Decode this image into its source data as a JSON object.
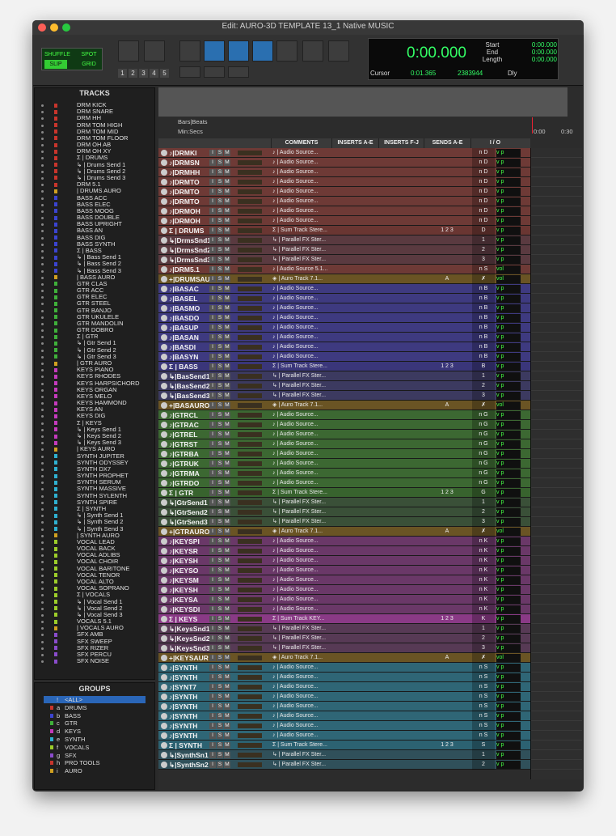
{
  "window": {
    "title": "Edit: AURO-3D TEMPLATE 13_1 Native MUSIC"
  },
  "toolbar": {
    "modes": [
      "SHUFFLE",
      "SPOT",
      "SLIP",
      "GRID"
    ],
    "zoom_presets": [
      "1",
      "2",
      "3",
      "4",
      "5"
    ],
    "counter": {
      "main": "0:00.000",
      "labels": [
        "Start",
        "End",
        "Length"
      ],
      "values": [
        "0:00.000",
        "0:00.000",
        "0:00.000"
      ]
    },
    "cursor": {
      "label": "Cursor",
      "time": "0:01.365",
      "samples": "2383944",
      "delay": "Dly"
    }
  },
  "tracks_panel": {
    "title": "TRACKS",
    "items": [
      [
        "DRM KICK",
        "#c8352c"
      ],
      [
        "DRM SNARE",
        "#c8352c"
      ],
      [
        "DRM HH",
        "#c8352c"
      ],
      [
        "DRM TOM HIGH",
        "#c8352c"
      ],
      [
        "DRM TOM MID",
        "#c8352c"
      ],
      [
        "DRM TOM FLOOR",
        "#c8352c"
      ],
      [
        "DRM OH AB",
        "#c8352c"
      ],
      [
        "DRM OH XY",
        "#c8352c"
      ],
      [
        "Σ | DRUMS",
        "#c8352c"
      ],
      [
        "↳ | Drums Send 1",
        "#c8352c"
      ],
      [
        "↳ | Drums Send 2",
        "#c8352c"
      ],
      [
        "↳ | Drums Send 3",
        "#c8352c"
      ],
      [
        "DRM 5.1",
        "#c8352c"
      ],
      [
        "| DRUMS AURO",
        "#d0a020"
      ],
      [
        "BASS ACC",
        "#3b44d0"
      ],
      [
        "BASS ELEC",
        "#3b44d0"
      ],
      [
        "BASS MOOG",
        "#3b44d0"
      ],
      [
        "BASS DOUBLE",
        "#3b44d0"
      ],
      [
        "BASS UPRIGHT",
        "#3b44d0"
      ],
      [
        "BASS AN",
        "#3b44d0"
      ],
      [
        "BASS DIG",
        "#3b44d0"
      ],
      [
        "BASS SYNTH",
        "#3b44d0"
      ],
      [
        "Σ | BASS",
        "#3b44d0"
      ],
      [
        "↳ | Bass Send 1",
        "#3b44d0"
      ],
      [
        "↳ | Bass Send 2",
        "#3b44d0"
      ],
      [
        "↳ | Bass Send 3",
        "#3b44d0"
      ],
      [
        "| BASS AURO",
        "#d0a020"
      ],
      [
        "GTR CLAS",
        "#3fb03a"
      ],
      [
        "GTR ACC",
        "#3fb03a"
      ],
      [
        "GTR ELEC",
        "#3fb03a"
      ],
      [
        "GTR STEEL",
        "#3fb03a"
      ],
      [
        "GTR BANJO",
        "#3fb03a"
      ],
      [
        "GTR UKULELE",
        "#3fb03a"
      ],
      [
        "GTR MANDOLIN",
        "#3fb03a"
      ],
      [
        "GTR DOBRO",
        "#3fb03a"
      ],
      [
        "Σ | GTR",
        "#3fb03a"
      ],
      [
        "↳ | Gtr Send 1",
        "#3fb03a"
      ],
      [
        "↳ | Gtr Send 2",
        "#3fb03a"
      ],
      [
        "↳ | Gtr Send 3",
        "#3fb03a"
      ],
      [
        "| GTR AURO",
        "#d0a020"
      ],
      [
        "KEYS PIANO",
        "#c43abc"
      ],
      [
        "KEYS RHODES",
        "#c43abc"
      ],
      [
        "KEYS HARPSICHORD",
        "#c43abc"
      ],
      [
        "KEYS ORGAN",
        "#c43abc"
      ],
      [
        "KEYS MELO",
        "#c43abc"
      ],
      [
        "KEYS HAMMOND",
        "#c43abc"
      ],
      [
        "KEYS AN",
        "#c43abc"
      ],
      [
        "KEYS DIG",
        "#c43abc"
      ],
      [
        "Σ | KEYS",
        "#c43abc"
      ],
      [
        "↳ | Keys Send 1",
        "#c43abc"
      ],
      [
        "↳ | Keys Send 2",
        "#c43abc"
      ],
      [
        "↳ | Keys Send 3",
        "#c43abc"
      ],
      [
        "| KEYS AURO",
        "#d0a020"
      ],
      [
        "SYNTH JUPITER",
        "#2fb0d0"
      ],
      [
        "SYNTH ODYSSEY",
        "#2fb0d0"
      ],
      [
        "SYNTH DX7",
        "#2fb0d0"
      ],
      [
        "SYNTH PROPHET",
        "#2fb0d0"
      ],
      [
        "SYNTH SERUM",
        "#2fb0d0"
      ],
      [
        "SYNTH MASSIVE",
        "#2fb0d0"
      ],
      [
        "SYNTH SYLENTH",
        "#2fb0d0"
      ],
      [
        "SYNTH SPIRE",
        "#2fb0d0"
      ],
      [
        "Σ | SYNTH",
        "#2fb0d0"
      ],
      [
        "↳ | Synth Send 1",
        "#2fb0d0"
      ],
      [
        "↳ | Synth Send 2",
        "#2fb0d0"
      ],
      [
        "↳ | Synth Send 3",
        "#2fb0d0"
      ],
      [
        "| SYNTH AURO",
        "#d0a020"
      ],
      [
        "VOCAL LEAD",
        "#9ccd2a"
      ],
      [
        "VOCAL BACK",
        "#9ccd2a"
      ],
      [
        "VOCAL ADLIBS",
        "#9ccd2a"
      ],
      [
        "VOCAL CHOIR",
        "#9ccd2a"
      ],
      [
        "VOCAL BARITONE",
        "#9ccd2a"
      ],
      [
        "VOCAL TENOR",
        "#9ccd2a"
      ],
      [
        "VOCAL ALTO",
        "#9ccd2a"
      ],
      [
        "VOCAL SOPRANO",
        "#9ccd2a"
      ],
      [
        "Σ | VOCALS",
        "#9ccd2a"
      ],
      [
        "↳ | Vocal Send 1",
        "#9ccd2a"
      ],
      [
        "↳ | Vocal Send 2",
        "#9ccd2a"
      ],
      [
        "↳ | Vocal Send 3",
        "#9ccd2a"
      ],
      [
        "VOCALS 5.1",
        "#9ccd2a"
      ],
      [
        "| VOCALS AURO",
        "#d0a020"
      ],
      [
        "SFX AMB",
        "#8a4ccc"
      ],
      [
        "SFX SWEEP",
        "#8a4ccc"
      ],
      [
        "SFX RIZER",
        "#8a4ccc"
      ],
      [
        "SFX PERCU",
        "#8a4ccc"
      ],
      [
        "SFX NOISE",
        "#8a4ccc"
      ]
    ]
  },
  "groups_panel": {
    "title": "GROUPS",
    "items": [
      [
        "!",
        "<ALL>",
        "#2a66b8"
      ],
      [
        "a",
        "DRUMS",
        "#c8352c"
      ],
      [
        "b",
        "BASS",
        "#3b44d0"
      ],
      [
        "c",
        "GTR",
        "#3fb03a"
      ],
      [
        "d",
        "KEYS",
        "#c43abc"
      ],
      [
        "e",
        "SYNTH",
        "#2fb0d0"
      ],
      [
        "f",
        "VOCALS",
        "#9ccd2a"
      ],
      [
        "g",
        "SFX",
        "#8a4ccc"
      ],
      [
        "h",
        "PRO TOOLS",
        "#c8352c"
      ],
      [
        "i",
        "AURO",
        "#d0a020"
      ]
    ]
  },
  "edit": {
    "rulers": [
      "Bars|Beats",
      "Min:Secs"
    ],
    "timeline": [
      "0:00",
      "0:30"
    ],
    "columns": [
      "COMMENTS",
      "INSERTS A-E",
      "INSERTS F-J",
      "SENDS A-E",
      "I / O"
    ],
    "row_buttons": [
      "I",
      "S",
      "M"
    ],
    "rows": [
      {
        "name": "♪|DRMKI",
        "comment": "♪ | Audio Source...",
        "io": "n D",
        "vol": "v p",
        "color": "#6e3a36"
      },
      {
        "name": "♪|DRMSN",
        "comment": "♪ | Audio Source...",
        "io": "n D",
        "vol": "v p",
        "color": "#6e3a36"
      },
      {
        "name": "♪|DRMHH",
        "comment": "♪ | Audio Source...",
        "io": "n D",
        "vol": "v p",
        "color": "#6e3a36"
      },
      {
        "name": "♪|DRMTO",
        "comment": "♪ | Audio Source...",
        "io": "n D",
        "vol": "v p",
        "color": "#6e3a36"
      },
      {
        "name": "♪|DRMTO",
        "comment": "♪ | Audio Source...",
        "io": "n D",
        "vol": "v p",
        "color": "#6e3a36"
      },
      {
        "name": "♪|DRMTO",
        "comment": "♪ | Audio Source...",
        "io": "n D",
        "vol": "v p",
        "color": "#6e3a36"
      },
      {
        "name": "♪|DRMOH",
        "comment": "♪ | Audio Source...",
        "io": "n D",
        "vol": "v p",
        "color": "#6e3a36"
      },
      {
        "name": "♪|DRMOH",
        "comment": "♪ | Audio Source...",
        "io": "n D",
        "vol": "v p",
        "color": "#6e3a36"
      },
      {
        "name": "Σ | DRUMS",
        "comment": "Σ | Sum Track Stere...",
        "sends": "1 2 3",
        "io": "D",
        "vol": "v p",
        "color": "#6a3632"
      },
      {
        "name": "↳|DrmsSnd1",
        "comment": "↳ | Parallel FX Ster...",
        "io": "1",
        "vol": "v p",
        "color": "#5a3a40"
      },
      {
        "name": "↳|DrmsSnd2",
        "comment": "↳ | Parallel FX Ster...",
        "io": "2",
        "vol": "v p",
        "color": "#5a3a40"
      },
      {
        "name": "↳|DrmsSnd3",
        "comment": "↳ | Parallel FX Ster...",
        "io": "3",
        "vol": "v p",
        "color": "#5a3a40"
      },
      {
        "name": "♪|DRM5.1",
        "comment": "♪ | Audio Source 5.1...",
        "io": "n S",
        "vol": "vol",
        "color": "#6e3a36"
      },
      {
        "name": "+|DRUMSAU",
        "comment": "◈ | Auro Track 7.1...",
        "sends": "A",
        "io": "✗",
        "vol": "vol",
        "color": "#6a5424"
      },
      {
        "name": "♪|BASAC",
        "comment": "♪ | Audio Source...",
        "io": "n B",
        "vol": "v p",
        "color": "#3e3a80"
      },
      {
        "name": "♪|BASEL",
        "comment": "♪ | Audio Source...",
        "io": "n B",
        "vol": "v p",
        "color": "#3e3a80"
      },
      {
        "name": "♪|BASMO",
        "comment": "♪ | Audio Source...",
        "io": "n B",
        "vol": "v p",
        "color": "#3e3a80"
      },
      {
        "name": "♪|BASDO",
        "comment": "♪ | Audio Source...",
        "io": "n B",
        "vol": "v p",
        "color": "#3e3a80"
      },
      {
        "name": "♪|BASUP",
        "comment": "♪ | Audio Source...",
        "io": "n B",
        "vol": "v p",
        "color": "#3e3a80"
      },
      {
        "name": "♪|BASAN",
        "comment": "♪ | Audio Source...",
        "io": "n B",
        "vol": "v p",
        "color": "#3e3a80"
      },
      {
        "name": "♪|BASDI",
        "comment": "♪ | Audio Source...",
        "io": "n B",
        "vol": "v p",
        "color": "#3e3a80"
      },
      {
        "name": "♪|BASYN",
        "comment": "♪ | Audio Source...",
        "io": "n B",
        "vol": "v p",
        "color": "#3e3a80"
      },
      {
        "name": "Σ | BASS",
        "comment": "Σ | Sum Track Stere...",
        "sends": "1 2 3",
        "io": "B",
        "vol": "v p",
        "color": "#3a367a"
      },
      {
        "name": "↳|BasSend1",
        "comment": "↳ | Parallel FX Ster...",
        "io": "1",
        "vol": "v p",
        "color": "#3c3a60"
      },
      {
        "name": "↳|BasSend2",
        "comment": "↳ | Parallel FX Ster...",
        "io": "2",
        "vol": "v p",
        "color": "#3c3a60"
      },
      {
        "name": "↳|BasSend3",
        "comment": "↳ | Parallel FX Ster...",
        "io": "3",
        "vol": "v p",
        "color": "#3c3a60"
      },
      {
        "name": "+|BASAURO",
        "comment": "◈ | Auro Track 7.1...",
        "sends": "A",
        "io": "✗",
        "vol": "vol",
        "color": "#6a5424"
      },
      {
        "name": "♪|GTRCL",
        "comment": "♪ | Audio Source...",
        "io": "n G",
        "vol": "v p",
        "color": "#3c6832"
      },
      {
        "name": "♪|GTRAC",
        "comment": "♪ | Audio Source...",
        "io": "n G",
        "vol": "v p",
        "color": "#3c6832"
      },
      {
        "name": "♪|GTREL",
        "comment": "♪ | Audio Source...",
        "io": "n G",
        "vol": "v p",
        "color": "#3c6832"
      },
      {
        "name": "♪|GTRST",
        "comment": "♪ | Audio Source...",
        "io": "n G",
        "vol": "v p",
        "color": "#3c6832"
      },
      {
        "name": "♪|GTRBA",
        "comment": "♪ | Audio Source...",
        "io": "n G",
        "vol": "v p",
        "color": "#3c6832"
      },
      {
        "name": "♪|GTRUK",
        "comment": "♪ | Audio Source...",
        "io": "n G",
        "vol": "v p",
        "color": "#3c6832"
      },
      {
        "name": "♪|GTRMA",
        "comment": "♪ | Audio Source...",
        "io": "n G",
        "vol": "v p",
        "color": "#3c6832"
      },
      {
        "name": "♪|GTRDO",
        "comment": "♪ | Audio Source...",
        "io": "n G",
        "vol": "v p",
        "color": "#3c6832"
      },
      {
        "name": "Σ | GTR",
        "comment": "Σ | Sum Track Stere...",
        "sends": "1 2 3",
        "io": "G",
        "vol": "v p",
        "color": "#38632e"
      },
      {
        "name": "↳|GtrSend1",
        "comment": "↳ | Parallel FX Ster...",
        "io": "1",
        "vol": "v p",
        "color": "#3a5038"
      },
      {
        "name": "↳|GtrSend2",
        "comment": "↳ | Parallel FX Ster...",
        "io": "2",
        "vol": "v p",
        "color": "#3a5038"
      },
      {
        "name": "↳|GtrSend3",
        "comment": "↳ | Parallel FX Ster...",
        "io": "3",
        "vol": "v p",
        "color": "#3a5038"
      },
      {
        "name": "+|GTRAURO",
        "comment": "◈ | Auro Track 7.1...",
        "sends": "A",
        "io": "✗",
        "vol": "vol",
        "color": "#6a5424"
      },
      {
        "name": "♪|KEYSPI",
        "comment": "♪ | Audio Source...",
        "io": "n K",
        "vol": "v p",
        "color": "#6a3868"
      },
      {
        "name": "♪|KEYSR",
        "comment": "♪ | Audio Source...",
        "io": "n K",
        "vol": "v p",
        "color": "#6a3868"
      },
      {
        "name": "♪|KEYSH",
        "comment": "♪ | Audio Source...",
        "io": "n K",
        "vol": "v p",
        "color": "#6a3868"
      },
      {
        "name": "♪|KEYSO",
        "comment": "♪ | Audio Source...",
        "io": "n K",
        "vol": "v p",
        "color": "#6a3868"
      },
      {
        "name": "♪|KEYSM",
        "comment": "♪ | Audio Source...",
        "io": "n K",
        "vol": "v p",
        "color": "#6a3868"
      },
      {
        "name": "♪|KEYSH",
        "comment": "♪ | Audio Source...",
        "io": "n K",
        "vol": "v p",
        "color": "#6a3868"
      },
      {
        "name": "♪|KEYSA",
        "comment": "♪ | Audio Source...",
        "io": "n K",
        "vol": "v p",
        "color": "#6a3868"
      },
      {
        "name": "♪|KEYSDI",
        "comment": "♪ | Audio Source...",
        "io": "n K",
        "vol": "v p",
        "color": "#6a3868"
      },
      {
        "name": "Σ | KEYS",
        "comment": "Σ | Sum Track KEY...",
        "sends": "1 2 3",
        "io": "K",
        "vol": "v p",
        "color": "#8a3a86"
      },
      {
        "name": "↳|KeysSnd1",
        "comment": "↳ | Parallel FX Ster...",
        "io": "1",
        "vol": "v p",
        "color": "#573a55"
      },
      {
        "name": "↳|KeysSnd2",
        "comment": "↳ | Parallel FX Ster...",
        "io": "2",
        "vol": "v p",
        "color": "#573a55"
      },
      {
        "name": "↳|KeysSnd3",
        "comment": "↳ | Parallel FX Ster...",
        "io": "3",
        "vol": "v p",
        "color": "#573a55"
      },
      {
        "name": "+|KEYSAUR",
        "comment": "◈ | Auro Track 7.1...",
        "sends": "A",
        "io": "✗",
        "vol": "vol",
        "color": "#6a5424"
      },
      {
        "name": "♪|SYNTH",
        "comment": "♪ | Audio Source...",
        "io": "n S",
        "vol": "v p",
        "color": "#2f6676"
      },
      {
        "name": "♪|SYNTH",
        "comment": "♪ | Audio Source...",
        "io": "n S",
        "vol": "v p",
        "color": "#2f6676"
      },
      {
        "name": "♪|SYNT7",
        "comment": "♪ | Audio Source...",
        "io": "n S",
        "vol": "v p",
        "color": "#2f6676"
      },
      {
        "name": "♪|SYNTH",
        "comment": "♪ | Audio Source...",
        "io": "n S",
        "vol": "v p",
        "color": "#2f6676"
      },
      {
        "name": "♪|SYNTH",
        "comment": "♪ | Audio Source...",
        "io": "n S",
        "vol": "v p",
        "color": "#2f6676"
      },
      {
        "name": "♪|SYNTH",
        "comment": "♪ | Audio Source...",
        "io": "n S",
        "vol": "v p",
        "color": "#2f6676"
      },
      {
        "name": "♪|SYNTH",
        "comment": "♪ | Audio Source...",
        "io": "n S",
        "vol": "v p",
        "color": "#2f6676"
      },
      {
        "name": "♪|SYNTH",
        "comment": "♪ | Audio Source...",
        "io": "n S",
        "vol": "v p",
        "color": "#2f6676"
      },
      {
        "name": "Σ | SYNTH",
        "comment": "Σ | Sum Track Stere...",
        "sends": "1 2 3",
        "io": "S",
        "vol": "v p",
        "color": "#2c6272"
      },
      {
        "name": "↳|SynthSn1",
        "comment": "↳ | Parallel FX Ster...",
        "io": "1",
        "vol": "v p",
        "color": "#30505a"
      },
      {
        "name": "↳|SynthSn2",
        "comment": "↳ | Parallel FX Ster...",
        "io": "2",
        "vol": "v p",
        "color": "#30505a"
      }
    ]
  }
}
